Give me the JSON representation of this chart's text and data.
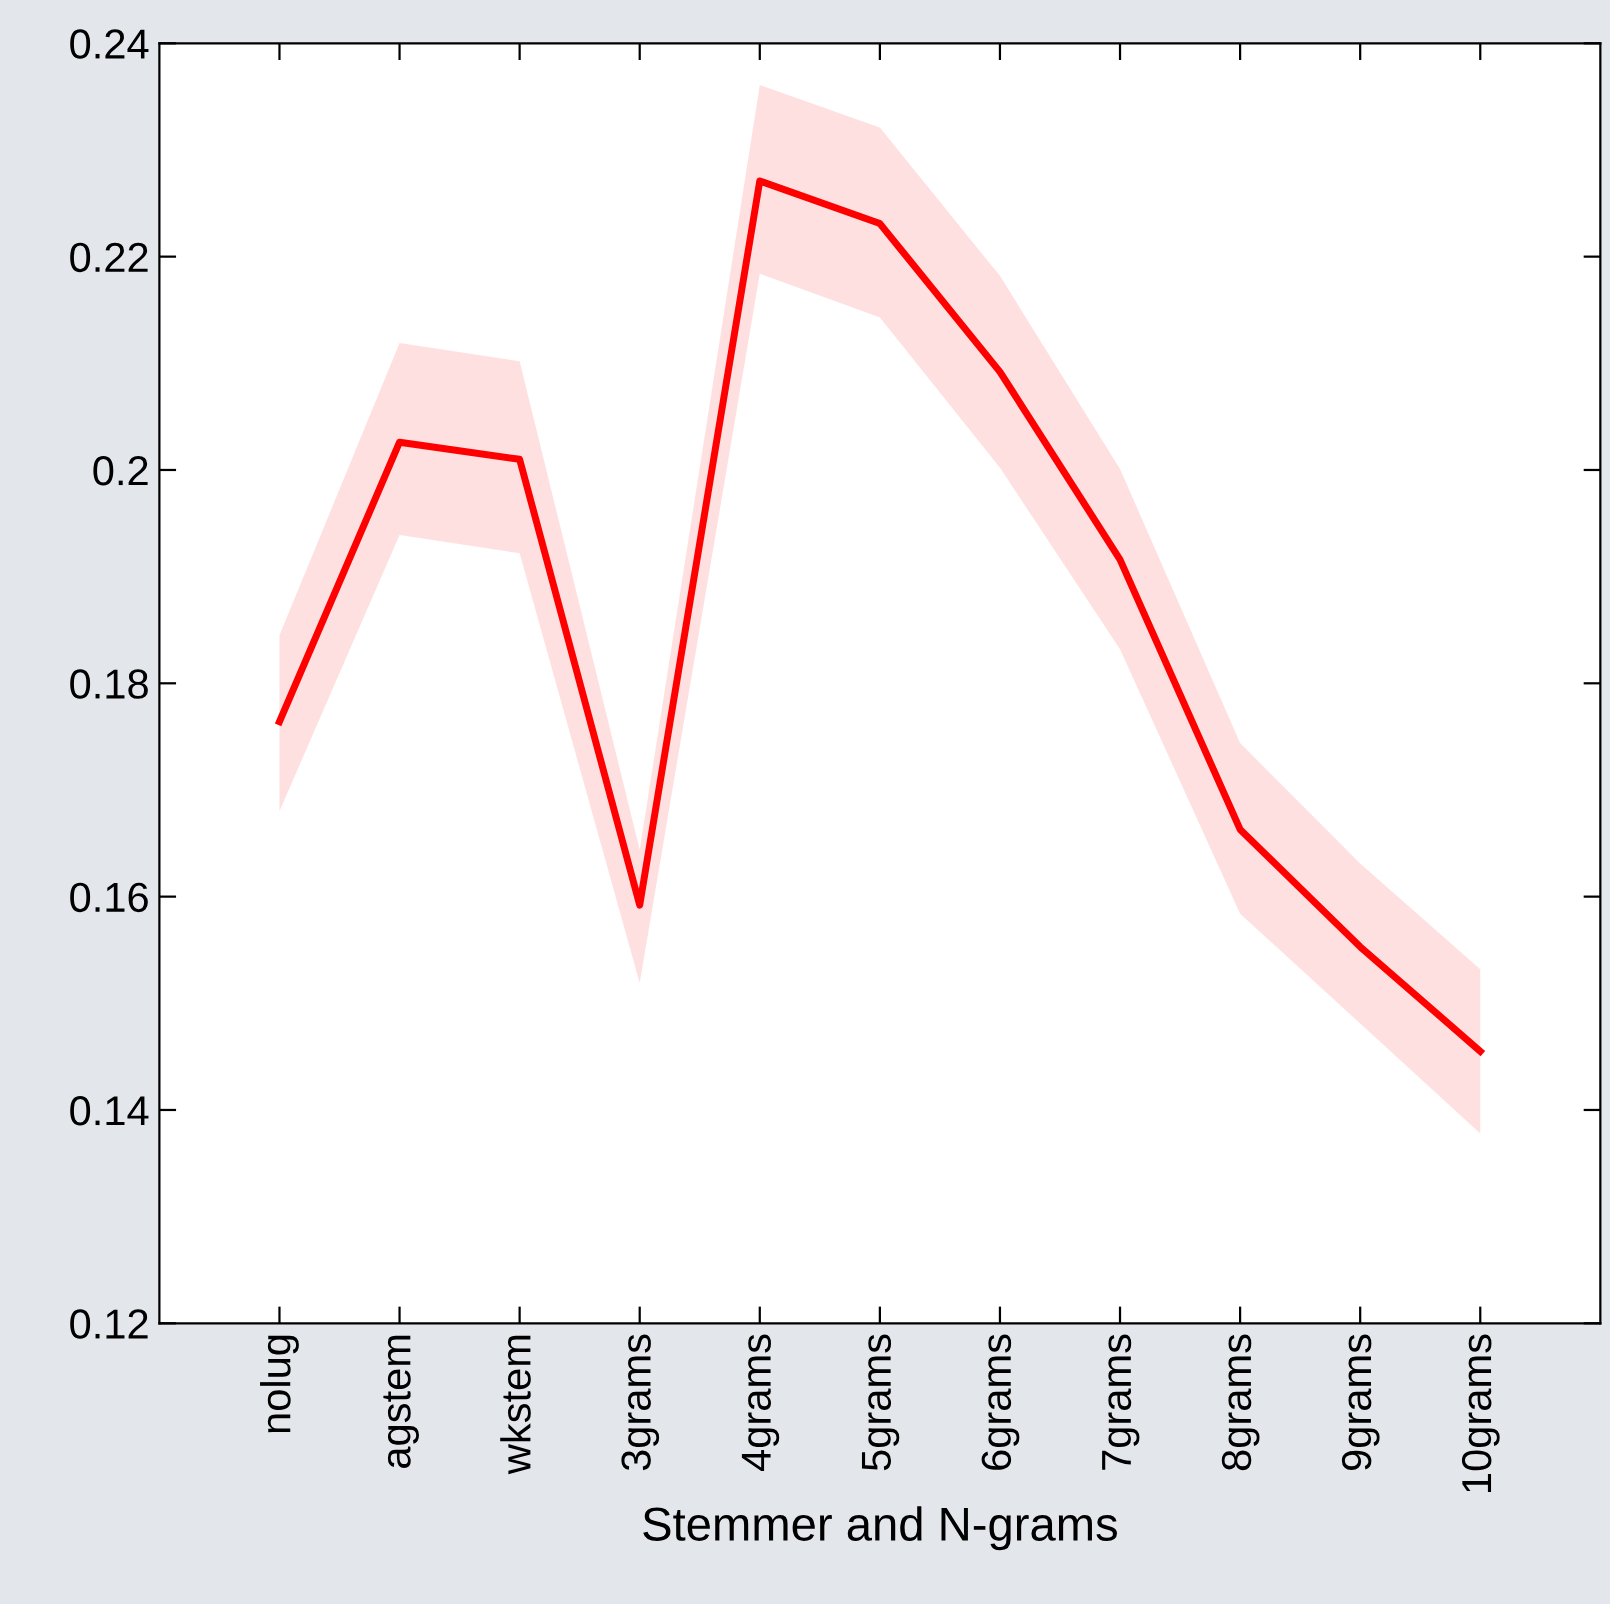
{
  "chart_data": {
    "type": "line",
    "xlabel": "Stemmer and N-grams",
    "categories": [
      "nolug",
      "agstem",
      "wkstem",
      "3grams",
      "4grams",
      "5grams",
      "6grams",
      "7grams",
      "8grams",
      "9grams",
      "10grams"
    ],
    "series": [
      {
        "color": "#ff0000",
        "values": [
          0.1764,
          0.2026,
          0.201,
          0.1592,
          0.2271,
          0.2231,
          0.2092,
          0.1916,
          0.1663,
          0.1553,
          0.1455
        ],
        "lower": [
          0.168,
          0.1939,
          0.1922,
          0.1519,
          0.2184,
          0.2143,
          0.2002,
          0.1832,
          0.1584,
          0.1481,
          0.1378
        ],
        "upper": [
          0.1845,
          0.2119,
          0.2102,
          0.1644,
          0.2361,
          0.2321,
          0.2182,
          0.2001,
          0.1744,
          0.1631,
          0.1532
        ]
      }
    ],
    "ylim": [
      0.12,
      0.24
    ],
    "yticks": [
      0.12,
      0.14,
      0.16,
      0.18,
      {
        "value": 0.2,
        "label": "0.2"
      },
      0.22,
      0.24
    ],
    "grid": false,
    "marker": "none",
    "line_style": "solid"
  }
}
